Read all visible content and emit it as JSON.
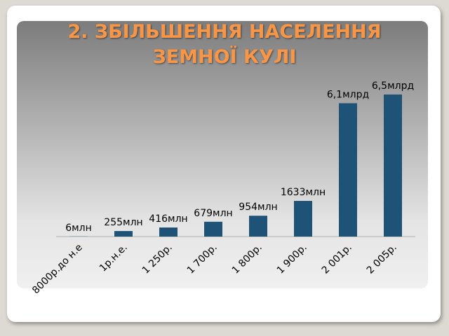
{
  "chart_data": {
    "type": "bar",
    "title": "2. ЗБІЛЬШЕННЯ НАСЕЛЕННЯ ЗЕМНОЇ КУЛІ",
    "categories": [
      "8000р.до н.е",
      "1р.н.е.",
      "1 250р.",
      "1 700р.",
      "1 800р.",
      "1 900р.",
      "2 001р.",
      "2 005р."
    ],
    "values": [
      6,
      255,
      416,
      679,
      954,
      1633,
      6100,
      6500
    ],
    "value_labels": [
      "6млн",
      "255млн",
      "416млн",
      "679млн",
      "954млн",
      "1633млн",
      "6,1млрд",
      "6,5млрд"
    ],
    "color": "#1f5277"
  }
}
